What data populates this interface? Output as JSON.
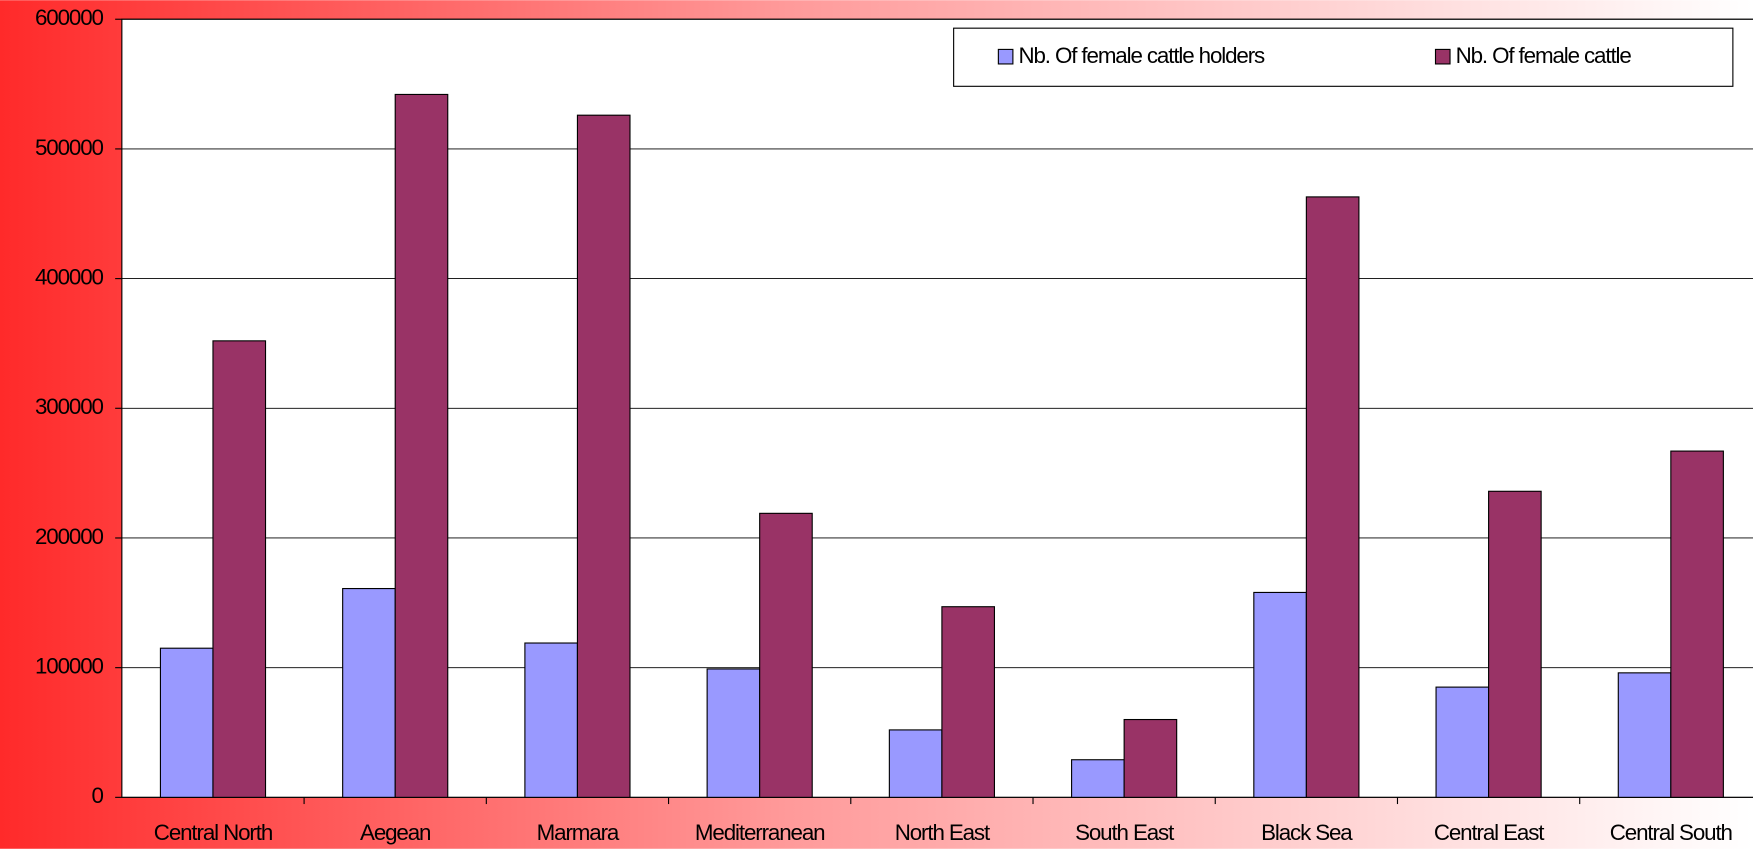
{
  "chart_data": {
    "type": "bar",
    "categories": [
      "Central North",
      "Aegean",
      "Marmara",
      "Mediterranean",
      "North East",
      "South East",
      "Black Sea",
      "Central East",
      "Central South"
    ],
    "series": [
      {
        "name": "Nb. Of female cattle holders",
        "color": "#9999ff",
        "values": [
          115000,
          161000,
          119000,
          99000,
          52000,
          29000,
          158000,
          85000,
          96000
        ]
      },
      {
        "name": "Nb. Of female cattle",
        "color": "#993366",
        "values": [
          352000,
          542000,
          526000,
          219000,
          147000,
          60000,
          463000,
          236000,
          267000
        ]
      }
    ],
    "ylim": [
      0,
      600000
    ],
    "yticks": [
      0,
      100000,
      200000,
      300000,
      400000,
      500000,
      600000
    ],
    "grid": true,
    "legend": "upper right"
  }
}
